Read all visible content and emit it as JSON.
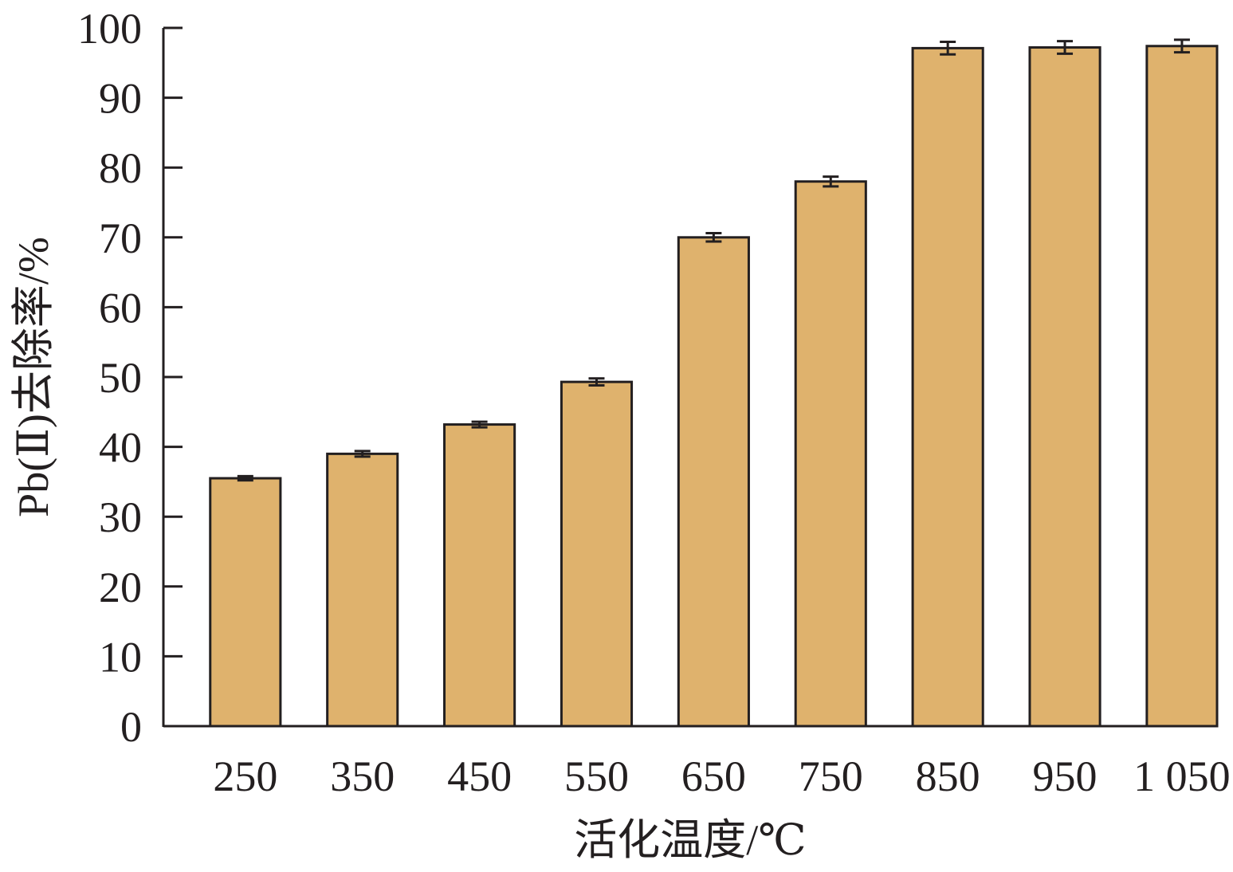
{
  "chart_data": {
    "type": "bar",
    "title": "",
    "xlabel": "活化温度/℃",
    "ylabel": "Pb(Ⅱ)去除率/%",
    "categories": [
      "250",
      "350",
      "450",
      "550",
      "650",
      "750",
      "850",
      "950",
      "1 050"
    ],
    "series": [
      {
        "values": [
          35.5,
          39.0,
          43.2,
          49.3,
          70.0,
          78.0,
          97.1,
          97.2,
          97.4
        ],
        "errors": [
          0.3,
          0.4,
          0.4,
          0.5,
          0.6,
          0.7,
          0.9,
          0.9,
          0.9
        ]
      }
    ],
    "ylim": [
      0,
      100
    ],
    "yticks": [
      "0",
      "10",
      "20",
      "30",
      "40",
      "50",
      "60",
      "70",
      "80",
      "90",
      "100"
    ],
    "grid": false,
    "legend": "none",
    "bar_color": "#dfb26d",
    "edge_color": "#231f20"
  }
}
